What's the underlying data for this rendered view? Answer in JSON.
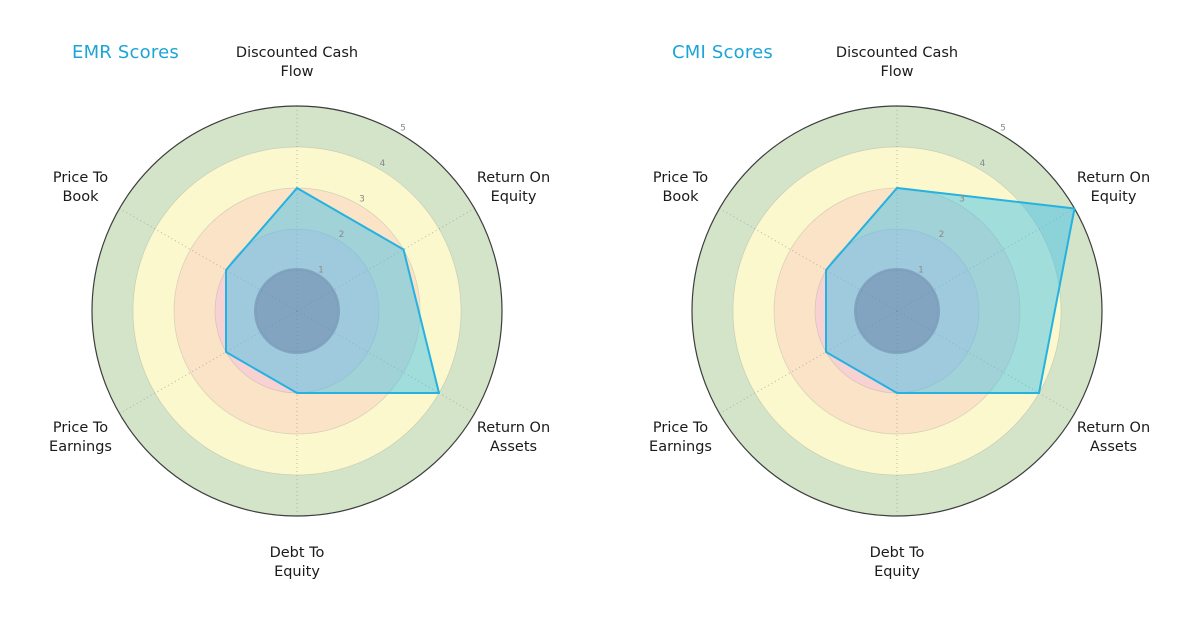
{
  "style": {
    "background": "#ffffff",
    "title_color": "#1ca5d6",
    "axis_label_color": "#1a1a1a",
    "tick_label_color": "#8a8a8a",
    "grid_color": "#999999",
    "outer_circle_color": "#3d3d3d",
    "polygon_fill": "#45c1ea",
    "polygon_fill_opacity": 0.5,
    "polygon_stroke": "#25b2e0",
    "center_disc_color": "#5a6f96",
    "center_disc_opacity": 0.42,
    "center_disc_radius": 1.05,
    "bands": [
      {
        "outer_radius": 5,
        "color": "#d3e4c9"
      },
      {
        "outer_radius": 4,
        "color": "#fbf8cd"
      },
      {
        "outer_radius": 3,
        "color": "#fae3c6"
      },
      {
        "outer_radius": 2,
        "color": "#f8d2d3"
      }
    ]
  },
  "chart_data": [
    {
      "type": "radar",
      "title": "EMR Scores",
      "categories": [
        "Discounted Cash Flow",
        "Return On Equity",
        "Return On Assets",
        "Debt To Equity",
        "Price To Earnings",
        "Price To Book"
      ],
      "values": [
        3,
        3,
        4,
        2,
        2,
        2
      ],
      "range": [
        0,
        5
      ],
      "ticks": [
        1,
        2,
        3,
        4,
        5
      ],
      "grid": "on",
      "legend_position": "none"
    },
    {
      "type": "radar",
      "title": "CMI Scores",
      "categories": [
        "Discounted Cash Flow",
        "Return On Equity",
        "Return On Assets",
        "Debt To Equity",
        "Price To Earnings",
        "Price To Book"
      ],
      "values": [
        3,
        5,
        4,
        2,
        2,
        2
      ],
      "range": [
        0,
        5
      ],
      "ticks": [
        1,
        2,
        3,
        4,
        5
      ],
      "grid": "on",
      "legend_position": "none"
    }
  ]
}
